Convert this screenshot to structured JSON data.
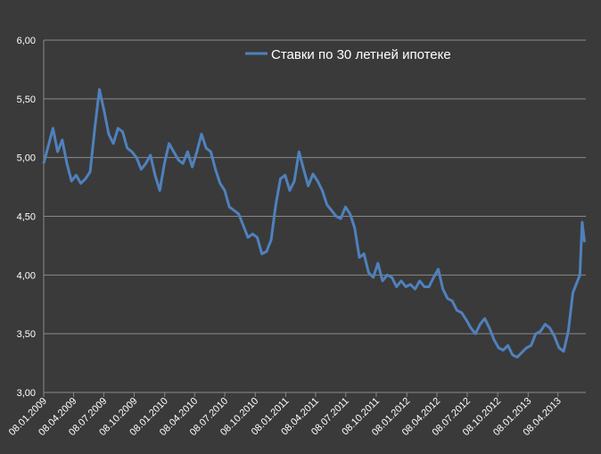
{
  "chart_data": {
    "type": "line",
    "legend_position": "top-center",
    "grid": true,
    "ylim": [
      3.0,
      6.0
    ],
    "y_ticks": [
      "3,00",
      "3,50",
      "4,00",
      "4,50",
      "5,00",
      "5,50",
      "6,00"
    ],
    "x_ticks": [
      "08.01.2009",
      "08.04.2009",
      "08.07.2009",
      "08.10.2009",
      "08.01.2010",
      "08.04.2010",
      "08.07.2010",
      "08.10.2010",
      "08.01.2011",
      "08.04.2011",
      "08.07.2011",
      "08.10.2011",
      "08.01.2012",
      "08.04.2012",
      "08.07.2012",
      "08.10.2012",
      "08.01.2013",
      "08.04.2013"
    ],
    "series": [
      {
        "name": "Ставки по 30 летней ипотеке",
        "color": "#4f81bd",
        "x": [
          "2009-01-08",
          "2009-01-22",
          "2009-02-05",
          "2009-02-19",
          "2009-03-05",
          "2009-03-19",
          "2009-04-02",
          "2009-04-16",
          "2009-04-30",
          "2009-05-14",
          "2009-05-28",
          "2009-06-11",
          "2009-06-25",
          "2009-07-09",
          "2009-07-23",
          "2009-08-06",
          "2009-08-20",
          "2009-09-03",
          "2009-09-17",
          "2009-10-01",
          "2009-10-15",
          "2009-10-29",
          "2009-11-12",
          "2009-11-26",
          "2009-12-10",
          "2009-12-24",
          "2010-01-07",
          "2010-01-21",
          "2010-02-04",
          "2010-02-18",
          "2010-03-04",
          "2010-03-18",
          "2010-04-01",
          "2010-04-15",
          "2010-04-29",
          "2010-05-13",
          "2010-05-27",
          "2010-06-10",
          "2010-06-24",
          "2010-07-08",
          "2010-07-22",
          "2010-08-05",
          "2010-08-19",
          "2010-09-02",
          "2010-09-16",
          "2010-09-30",
          "2010-10-14",
          "2010-10-28",
          "2010-11-11",
          "2010-11-25",
          "2010-12-09",
          "2010-12-23",
          "2011-01-06",
          "2011-01-20",
          "2011-02-03",
          "2011-02-17",
          "2011-03-03",
          "2011-03-17",
          "2011-03-31",
          "2011-04-14",
          "2011-04-28",
          "2011-05-12",
          "2011-05-26",
          "2011-06-09",
          "2011-06-23",
          "2011-07-07",
          "2011-07-21",
          "2011-08-04",
          "2011-08-18",
          "2011-09-01",
          "2011-09-15",
          "2011-09-29",
          "2011-10-13",
          "2011-10-27",
          "2011-11-10",
          "2011-11-24",
          "2011-12-08",
          "2011-12-22",
          "2012-01-05",
          "2012-01-19",
          "2012-02-02",
          "2012-02-16",
          "2012-03-01",
          "2012-03-15",
          "2012-03-29",
          "2012-04-12",
          "2012-04-26",
          "2012-05-10",
          "2012-05-24",
          "2012-06-07",
          "2012-06-21",
          "2012-07-05",
          "2012-07-19",
          "2012-08-02",
          "2012-08-16",
          "2012-08-30",
          "2012-09-13",
          "2012-09-27",
          "2012-10-11",
          "2012-10-25",
          "2012-11-08",
          "2012-11-22",
          "2012-12-06",
          "2012-12-20",
          "2013-01-03",
          "2013-01-17",
          "2013-01-31",
          "2013-02-14",
          "2013-02-28",
          "2013-03-14",
          "2013-03-28",
          "2013-04-11",
          "2013-04-25",
          "2013-05-09",
          "2013-05-23",
          "2013-06-06",
          "2013-06-13",
          "2013-06-20",
          "2013-06-27"
        ],
        "values": [
          4.95,
          5.1,
          5.25,
          5.05,
          5.15,
          4.95,
          4.8,
          4.85,
          4.78,
          4.82,
          4.88,
          5.25,
          5.58,
          5.4,
          5.2,
          5.12,
          5.25,
          5.22,
          5.08,
          5.05,
          5.0,
          4.9,
          4.95,
          5.02,
          4.85,
          4.72,
          4.95,
          5.12,
          5.05,
          4.98,
          4.95,
          5.05,
          4.92,
          5.05,
          5.2,
          5.08,
          5.05,
          4.9,
          4.78,
          4.72,
          4.58,
          4.55,
          4.52,
          4.42,
          4.32,
          4.35,
          4.32,
          4.18,
          4.2,
          4.3,
          4.6,
          4.82,
          4.85,
          4.72,
          4.8,
          5.05,
          4.9,
          4.76,
          4.86,
          4.8,
          4.72,
          4.6,
          4.55,
          4.5,
          4.48,
          4.58,
          4.52,
          4.4,
          4.15,
          4.18,
          4.02,
          3.98,
          4.1,
          3.95,
          4.0,
          3.98,
          3.9,
          3.95,
          3.9,
          3.92,
          3.88,
          3.95,
          3.9,
          3.9,
          3.98,
          4.05,
          3.88,
          3.8,
          3.78,
          3.7,
          3.68,
          3.62,
          3.55,
          3.5,
          3.58,
          3.63,
          3.55,
          3.45,
          3.38,
          3.36,
          3.4,
          3.32,
          3.3,
          3.34,
          3.38,
          3.4,
          3.5,
          3.52,
          3.58,
          3.55,
          3.48,
          3.38,
          3.35,
          3.52,
          3.85,
          3.95,
          4.0,
          4.45,
          4.28
        ]
      }
    ]
  }
}
